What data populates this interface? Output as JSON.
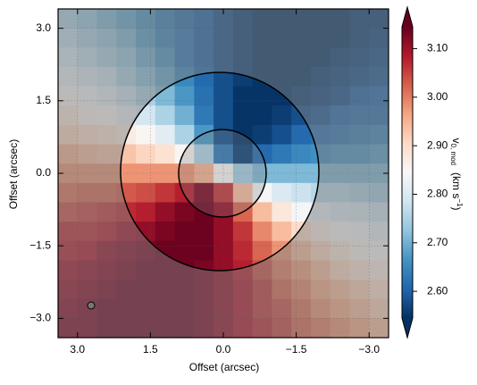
{
  "chart_data": {
    "type": "heatmap",
    "x_label": "Offset (arcsec)",
    "y_label": "Offset (arcsec)",
    "colorbar_label": [
      "v",
      "0, mod",
      "(km s",
      "−1",
      ")"
    ],
    "x": [
      3.2,
      2.8,
      2.4,
      2.0,
      1.6,
      1.2,
      0.8,
      0.4,
      0.0,
      -0.4,
      -0.8,
      -1.2,
      -1.6,
      -2.0,
      -2.4,
      -2.8,
      -3.2
    ],
    "y": [
      3.2,
      2.8,
      2.4,
      2.0,
      1.6,
      1.2,
      0.8,
      0.4,
      0.0,
      -0.4,
      -0.8,
      -1.2,
      -1.6,
      -2.0,
      -2.4,
      -2.8,
      -3.2
    ],
    "z": [
      [
        2.75,
        2.73,
        2.71,
        2.69,
        2.67,
        2.64,
        2.62,
        2.6,
        2.58,
        2.56,
        2.55,
        2.55,
        2.55,
        2.55,
        2.55,
        2.56,
        2.56
      ],
      [
        2.77,
        2.75,
        2.73,
        2.71,
        2.68,
        2.65,
        2.63,
        2.6,
        2.58,
        2.56,
        2.55,
        2.55,
        2.55,
        2.55,
        2.55,
        2.56,
        2.57
      ],
      [
        2.79,
        2.77,
        2.75,
        2.73,
        2.7,
        2.67,
        2.63,
        2.6,
        2.58,
        2.56,
        2.55,
        2.55,
        2.55,
        2.55,
        2.56,
        2.57,
        2.58
      ],
      [
        2.82,
        2.8,
        2.78,
        2.75,
        2.72,
        2.69,
        2.65,
        2.61,
        2.58,
        2.56,
        2.55,
        2.55,
        2.55,
        2.56,
        2.57,
        2.58,
        2.59
      ],
      [
        2.85,
        2.83,
        2.81,
        2.78,
        2.75,
        2.71,
        2.67,
        2.62,
        2.58,
        2.55,
        2.55,
        2.55,
        2.56,
        2.57,
        2.58,
        2.6,
        2.61
      ],
      [
        2.88,
        2.86,
        2.85,
        2.82,
        2.79,
        2.75,
        2.7,
        2.63,
        2.58,
        2.55,
        2.55,
        2.56,
        2.58,
        2.59,
        2.61,
        2.62,
        2.62
      ],
      [
        2.91,
        2.9,
        2.89,
        2.87,
        2.85,
        2.81,
        2.75,
        2.67,
        2.58,
        2.55,
        2.56,
        2.58,
        2.61,
        2.62,
        2.63,
        2.64,
        2.65
      ],
      [
        2.95,
        2.94,
        2.93,
        2.93,
        2.91,
        2.89,
        2.85,
        2.75,
        2.63,
        2.56,
        2.61,
        2.63,
        2.65,
        2.66,
        2.67,
        2.67,
        2.68
      ],
      [
        2.98,
        2.98,
        2.98,
        2.98,
        2.98,
        2.98,
        2.98,
        2.95,
        2.85,
        2.74,
        2.71,
        2.71,
        2.71,
        2.71,
        2.71,
        2.71,
        2.71
      ],
      [
        3.01,
        3.02,
        3.02,
        3.03,
        3.04,
        3.06,
        3.08,
        3.13,
        3.06,
        2.94,
        2.84,
        2.8,
        2.78,
        2.76,
        2.76,
        2.75,
        2.74
      ],
      [
        3.04,
        3.05,
        3.06,
        3.07,
        3.08,
        3.11,
        3.13,
        3.14,
        3.11,
        3.02,
        2.94,
        2.88,
        2.84,
        2.82,
        2.8,
        2.79,
        2.78
      ],
      [
        3.07,
        3.07,
        3.08,
        3.1,
        3.11,
        3.13,
        3.14,
        3.14,
        3.11,
        3.06,
        2.99,
        2.94,
        2.9,
        2.87,
        2.84,
        2.83,
        2.81
      ],
      [
        3.08,
        3.09,
        3.11,
        3.12,
        3.13,
        3.14,
        3.14,
        3.14,
        3.11,
        3.07,
        3.02,
        2.98,
        2.94,
        2.91,
        2.88,
        2.86,
        2.84
      ],
      [
        3.1,
        3.11,
        3.12,
        3.13,
        3.14,
        3.14,
        3.14,
        3.13,
        3.11,
        3.08,
        3.04,
        3.0,
        2.97,
        2.94,
        2.91,
        2.89,
        2.87
      ],
      [
        3.11,
        3.12,
        3.13,
        3.14,
        3.14,
        3.14,
        3.14,
        3.13,
        3.11,
        3.09,
        3.06,
        3.02,
        2.99,
        2.96,
        2.94,
        2.92,
        2.9
      ],
      [
        3.12,
        3.13,
        3.14,
        3.14,
        3.14,
        3.14,
        3.14,
        3.13,
        3.11,
        3.09,
        3.06,
        3.04,
        3.01,
        2.98,
        2.96,
        2.94,
        2.92
      ],
      [
        3.13,
        3.13,
        3.14,
        3.14,
        3.14,
        3.14,
        3.14,
        3.13,
        3.11,
        3.09,
        3.07,
        3.05,
        3.02,
        3.0,
        2.98,
        2.96,
        2.94
      ]
    ],
    "xlim": [
      3.4,
      -3.4
    ],
    "ylim": [
      -3.4,
      3.4
    ],
    "xticks": [
      {
        "value": 3,
        "label": "3.0"
      },
      1.5,
      {
        "value": 0,
        "label": "0.0"
      },
      {
        "value": -1.5,
        "label": "−1.5"
      },
      {
        "value": -3,
        "label": "−3.0"
      }
    ],
    "yticks": [
      {
        "value": 3,
        "label": "3.0"
      },
      1.5,
      {
        "value": 0,
        "label": "0.0"
      },
      {
        "value": -1.5,
        "label": "−1.5"
      },
      {
        "value": -3,
        "label": "−3.0"
      }
    ],
    "colorbar_lim": [
      2.545,
      3.145
    ],
    "colorbar_ticks": [
      {
        "value": 2.6,
        "label": "2.60"
      },
      {
        "value": 2.7,
        "label": "2.70"
      },
      {
        "value": 2.8,
        "label": "2.80"
      },
      {
        "value": 2.9,
        "label": "2.90"
      },
      {
        "value": 3.0,
        "label": "3.00"
      },
      {
        "value": 3.1,
        "label": "3.10"
      }
    ],
    "colormap": [
      "#053061",
      "#2166ac",
      "#4393c3",
      "#92c5de",
      "#d1e5f0",
      "#f7f7f7",
      "#fddbc7",
      "#f4a582",
      "#d6604d",
      "#b2182b",
      "#67001f"
    ],
    "grid": true
  }
}
